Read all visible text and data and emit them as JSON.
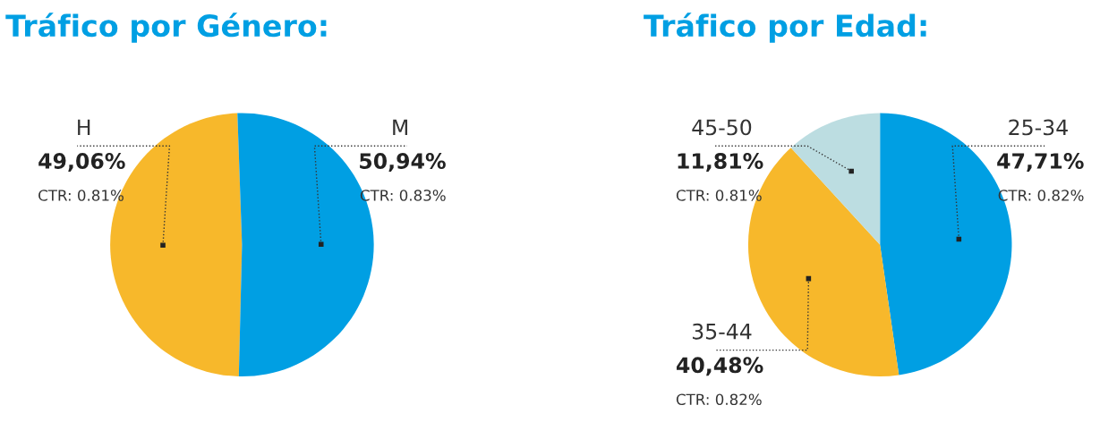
{
  "chart_data": [
    {
      "type": "pie",
      "title": "Tráfico por Género:",
      "categories": [
        "H",
        "M"
      ],
      "values": [
        49.06,
        50.94
      ],
      "colors": [
        "#f7b82b",
        "#009fe3"
      ],
      "value_labels": [
        "49,06%",
        "50,94%"
      ],
      "annotations": [
        "CTR: 0.81%",
        "CTR: 0.83%"
      ]
    },
    {
      "type": "pie",
      "title": "Tráfico por Edad:",
      "categories": [
        "25-34",
        "35-44",
        "45-50"
      ],
      "values": [
        47.71,
        40.48,
        11.81
      ],
      "colors": [
        "#009fe3",
        "#f7b82b",
        "#bcdde1"
      ],
      "value_labels": [
        "47,71%",
        "40,48%",
        "11,81%"
      ],
      "annotations": [
        "CTR: 0.82%",
        "CTR: 0.82%",
        "CTR: 0.81%"
      ]
    }
  ]
}
